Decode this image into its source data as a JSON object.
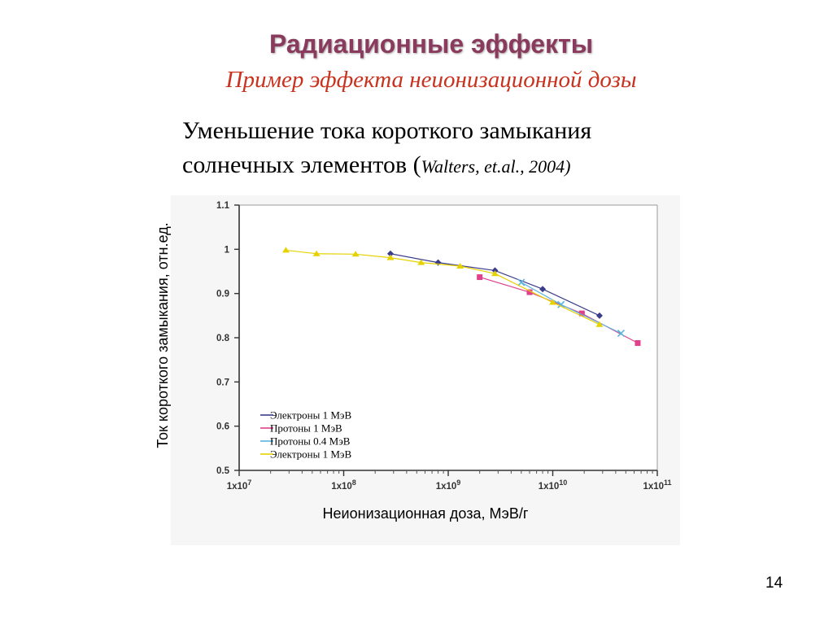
{
  "slide": {
    "title": "Радиационные эффекты",
    "subtitle": "Пример эффекта неионизационной  дозы",
    "line1": "Уменьшение тока короткого замыкания",
    "line2_main": "солнечных элементов (",
    "line2_cite": "Walters, et.al., 2004)",
    "page_number": "14"
  },
  "chart_data": {
    "type": "line",
    "title": "",
    "xlabel": "Неионизационная доза, МэВ/г",
    "ylabel": "Ток короткого замыкания, отн.ед.",
    "xscale": "log",
    "xlim": [
      10000000,
      100000000000
    ],
    "ylim": [
      0.5,
      1.1
    ],
    "x_ticks": [
      {
        "base": "1x10",
        "exp": "7"
      },
      {
        "base": "1x10",
        "exp": "8"
      },
      {
        "base": "1x10",
        "exp": "9"
      },
      {
        "base": "1x10",
        "exp": "10"
      },
      {
        "base": "1x10",
        "exp": "11"
      }
    ],
    "y_ticks": [
      "1.1",
      "1",
      "0.9",
      "0.8",
      "0.7",
      "0.6",
      "0.5"
    ],
    "grid": false,
    "legend_position": "bottom-left",
    "series": [
      {
        "name": "Электроны 1 МэВ",
        "color": "#3c3c8c",
        "marker": "diamond",
        "x": [
          280000000,
          800000000,
          2800000000,
          8000000000,
          28000000000
        ],
        "y": [
          0.99,
          0.97,
          0.952,
          0.91,
          0.85
        ]
      },
      {
        "name": "Протоны 1 МэВ",
        "color": "#e0408c",
        "marker": "square",
        "x": [
          2000000000,
          6000000000,
          19000000000,
          65000000000
        ],
        "y": [
          0.937,
          0.903,
          0.855,
          0.788
        ]
      },
      {
        "name": "Протоны 0.4 МэВ",
        "color": "#5ab4dc",
        "marker": "x",
        "x": [
          5000000000,
          12000000000,
          45000000000
        ],
        "y": [
          0.925,
          0.875,
          0.81
        ]
      },
      {
        "name": "Электроны 1 МэВ",
        "color": "#e6d200",
        "marker": "triangle",
        "x": [
          28000000,
          55000000,
          130000000,
          280000000,
          550000000,
          1300000000,
          2800000000,
          10000000000,
          28000000000
        ],
        "y": [
          0.998,
          0.99,
          0.989,
          0.981,
          0.97,
          0.962,
          0.945,
          0.88,
          0.83
        ]
      }
    ]
  }
}
